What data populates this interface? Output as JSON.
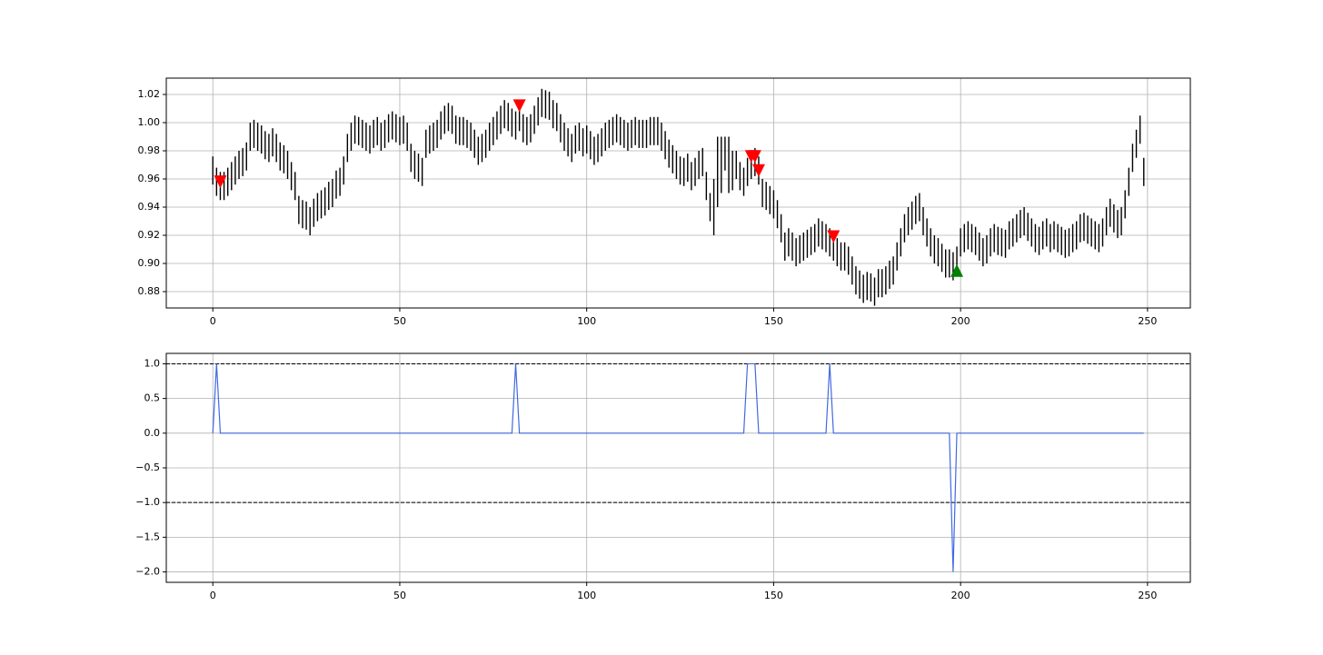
{
  "chart_data": [
    {
      "type": "range",
      "color": "#000000",
      "grid": true,
      "x": [
        0,
        1,
        2,
        3,
        4,
        5,
        6,
        7,
        8,
        9,
        10,
        11,
        12,
        13,
        14,
        15,
        16,
        17,
        18,
        19,
        20,
        21,
        22,
        23,
        24,
        25,
        26,
        27,
        28,
        29,
        30,
        31,
        32,
        33,
        34,
        35,
        36,
        37,
        38,
        39,
        40,
        41,
        42,
        43,
        44,
        45,
        46,
        47,
        48,
        49,
        50,
        51,
        52,
        53,
        54,
        55,
        56,
        57,
        58,
        59,
        60,
        61,
        62,
        63,
        64,
        65,
        66,
        67,
        68,
        69,
        70,
        71,
        72,
        73,
        74,
        75,
        76,
        77,
        78,
        79,
        80,
        81,
        82,
        83,
        84,
        85,
        86,
        87,
        88,
        89,
        90,
        91,
        92,
        93,
        94,
        95,
        96,
        97,
        98,
        99,
        100,
        101,
        102,
        103,
        104,
        105,
        106,
        107,
        108,
        109,
        110,
        111,
        112,
        113,
        114,
        115,
        116,
        117,
        118,
        119,
        120,
        121,
        122,
        123,
        124,
        125,
        126,
        127,
        128,
        129,
        130,
        131,
        132,
        133,
        134,
        135,
        136,
        137,
        138,
        139,
        140,
        141,
        142,
        143,
        144,
        145,
        146,
        147,
        148,
        149,
        150,
        151,
        152,
        153,
        154,
        155,
        156,
        157,
        158,
        159,
        160,
        161,
        162,
        163,
        164,
        165,
        166,
        167,
        168,
        169,
        170,
        171,
        172,
        173,
        174,
        175,
        176,
        177,
        178,
        179,
        180,
        181,
        182,
        183,
        184,
        185,
        186,
        187,
        188,
        189,
        190,
        191,
        192,
        193,
        194,
        195,
        196,
        197,
        198,
        199,
        200,
        201,
        202,
        203,
        204,
        205,
        206,
        207,
        208,
        209,
        210,
        211,
        212,
        213,
        214,
        215,
        216,
        217,
        218,
        219,
        220,
        221,
        222,
        223,
        224,
        225,
        226,
        227,
        228,
        229,
        230,
        231,
        232,
        233,
        234,
        235,
        236,
        237,
        238,
        239,
        240,
        241,
        242,
        243,
        244,
        245,
        246,
        247,
        248,
        249
      ],
      "high": [
        0.976,
        0.968,
        0.965,
        0.965,
        0.968,
        0.972,
        0.976,
        0.98,
        0.982,
        0.986,
        1.0,
        1.002,
        1.0,
        0.998,
        0.994,
        0.992,
        0.996,
        0.992,
        0.986,
        0.984,
        0.98,
        0.972,
        0.965,
        0.948,
        0.945,
        0.944,
        0.94,
        0.946,
        0.95,
        0.952,
        0.954,
        0.958,
        0.96,
        0.966,
        0.968,
        0.976,
        0.992,
        1.0,
        1.005,
        1.004,
        1.002,
        1.0,
        0.998,
        1.002,
        1.004,
        1.0,
        1.002,
        1.006,
        1.008,
        1.006,
        1.004,
        1.005,
        1.0,
        0.985,
        0.98,
        0.978,
        0.975,
        0.995,
        0.998,
        1.0,
        1.002,
        1.008,
        1.012,
        1.014,
        1.012,
        1.005,
        1.004,
        1.004,
        1.002,
        1.0,
        0.995,
        0.99,
        0.992,
        0.995,
        1.0,
        1.004,
        1.008,
        1.012,
        1.016,
        1.014,
        1.01,
        1.008,
        1.014,
        1.006,
        1.004,
        1.006,
        1.012,
        1.018,
        1.024,
        1.023,
        1.022,
        1.016,
        1.014,
        1.006,
        1.0,
        0.996,
        0.992,
        0.998,
        1.0,
        0.996,
        0.998,
        0.994,
        0.99,
        0.992,
        0.996,
        1.0,
        1.002,
        1.004,
        1.006,
        1.004,
        1.002,
        1.0,
        1.002,
        1.004,
        1.002,
        1.002,
        1.002,
        1.004,
        1.004,
        1.004,
        1.0,
        0.994,
        0.988,
        0.984,
        0.98,
        0.976,
        0.975,
        0.978,
        0.972,
        0.975,
        0.98,
        0.982,
        0.965,
        0.95,
        0.96,
        0.99,
        0.99,
        0.99,
        0.99,
        0.98,
        0.98,
        0.972,
        0.968,
        0.975,
        0.98,
        0.982,
        0.976,
        0.96,
        0.958,
        0.955,
        0.952,
        0.945,
        0.935,
        0.922,
        0.925,
        0.922,
        0.918,
        0.92,
        0.922,
        0.924,
        0.926,
        0.928,
        0.932,
        0.93,
        0.928,
        0.925,
        0.922,
        0.918,
        0.915,
        0.915,
        0.912,
        0.905,
        0.898,
        0.895,
        0.892,
        0.894,
        0.893,
        0.89,
        0.896,
        0.896,
        0.898,
        0.902,
        0.905,
        0.915,
        0.925,
        0.935,
        0.94,
        0.944,
        0.948,
        0.95,
        0.94,
        0.932,
        0.925,
        0.92,
        0.918,
        0.914,
        0.91,
        0.91,
        0.908,
        0.912,
        0.925,
        0.928,
        0.93,
        0.928,
        0.926,
        0.922,
        0.918,
        0.92,
        0.925,
        0.928,
        0.926,
        0.925,
        0.924,
        0.93,
        0.932,
        0.935,
        0.938,
        0.94,
        0.936,
        0.932,
        0.928,
        0.926,
        0.93,
        0.932,
        0.928,
        0.93,
        0.928,
        0.926,
        0.924,
        0.925,
        0.928,
        0.93,
        0.935,
        0.936,
        0.934,
        0.932,
        0.93,
        0.928,
        0.932,
        0.94,
        0.946,
        0.942,
        0.938,
        0.94,
        0.952,
        0.968,
        0.985,
        0.995,
        1.005,
        0.975
      ],
      "low": [
        0.956,
        0.948,
        0.945,
        0.945,
        0.948,
        0.952,
        0.956,
        0.96,
        0.962,
        0.966,
        0.98,
        0.982,
        0.98,
        0.978,
        0.974,
        0.972,
        0.976,
        0.972,
        0.966,
        0.964,
        0.96,
        0.952,
        0.945,
        0.928,
        0.925,
        0.924,
        0.92,
        0.926,
        0.93,
        0.932,
        0.934,
        0.938,
        0.94,
        0.946,
        0.948,
        0.956,
        0.972,
        0.98,
        0.985,
        0.984,
        0.982,
        0.98,
        0.978,
        0.982,
        0.984,
        0.98,
        0.982,
        0.986,
        0.988,
        0.986,
        0.984,
        0.985,
        0.98,
        0.965,
        0.96,
        0.958,
        0.955,
        0.975,
        0.978,
        0.98,
        0.982,
        0.988,
        0.992,
        0.994,
        0.992,
        0.985,
        0.984,
        0.984,
        0.982,
        0.98,
        0.975,
        0.97,
        0.972,
        0.975,
        0.98,
        0.984,
        0.988,
        0.992,
        0.996,
        0.994,
        0.99,
        0.988,
        0.994,
        0.986,
        0.984,
        0.986,
        0.992,
        0.998,
        1.004,
        1.003,
        1.002,
        0.996,
        0.994,
        0.986,
        0.98,
        0.976,
        0.972,
        0.978,
        0.98,
        0.976,
        0.978,
        0.974,
        0.97,
        0.972,
        0.976,
        0.98,
        0.982,
        0.984,
        0.986,
        0.984,
        0.982,
        0.98,
        0.982,
        0.984,
        0.982,
        0.982,
        0.982,
        0.984,
        0.984,
        0.984,
        0.98,
        0.974,
        0.968,
        0.964,
        0.96,
        0.956,
        0.955,
        0.958,
        0.952,
        0.955,
        0.96,
        0.962,
        0.945,
        0.93,
        0.92,
        0.94,
        0.95,
        0.966,
        0.95,
        0.952,
        0.96,
        0.952,
        0.948,
        0.955,
        0.96,
        0.962,
        0.956,
        0.94,
        0.938,
        0.935,
        0.932,
        0.925,
        0.915,
        0.902,
        0.905,
        0.902,
        0.898,
        0.9,
        0.902,
        0.904,
        0.906,
        0.908,
        0.912,
        0.91,
        0.908,
        0.905,
        0.902,
        0.898,
        0.895,
        0.895,
        0.892,
        0.885,
        0.878,
        0.875,
        0.872,
        0.874,
        0.873,
        0.87,
        0.876,
        0.876,
        0.878,
        0.882,
        0.885,
        0.895,
        0.905,
        0.915,
        0.92,
        0.924,
        0.928,
        0.93,
        0.92,
        0.912,
        0.905,
        0.9,
        0.898,
        0.894,
        0.89,
        0.89,
        0.888,
        0.892,
        0.905,
        0.908,
        0.91,
        0.908,
        0.906,
        0.902,
        0.898,
        0.9,
        0.905,
        0.908,
        0.906,
        0.905,
        0.904,
        0.91,
        0.912,
        0.915,
        0.918,
        0.92,
        0.916,
        0.912,
        0.908,
        0.906,
        0.91,
        0.912,
        0.908,
        0.91,
        0.908,
        0.906,
        0.904,
        0.905,
        0.908,
        0.91,
        0.915,
        0.916,
        0.914,
        0.912,
        0.91,
        0.908,
        0.912,
        0.92,
        0.926,
        0.922,
        0.918,
        0.92,
        0.932,
        0.948,
        0.965,
        0.975,
        0.985,
        0.955
      ],
      "markers": [
        {
          "marker": "down",
          "color": "#ff0000",
          "x": [
            2,
            82,
            144,
            145,
            146,
            166
          ],
          "y": [
            0.958,
            1.012,
            0.976,
            0.976,
            0.966,
            0.919
          ]
        },
        {
          "marker": "up",
          "color": "#008000",
          "x": [
            199
          ],
          "y": [
            0.895
          ]
        }
      ],
      "xlim": [
        -12.45,
        261.45
      ],
      "ylim": [
        0.8684,
        1.0316
      ],
      "xticks": [
        0,
        50,
        100,
        150,
        200,
        250
      ],
      "yticks": [
        0.88,
        {
          "value": 0.9,
          "label": "0.90"
        },
        0.92,
        0.94,
        0.96,
        0.98,
        {
          "value": 1,
          "label": "1.00"
        },
        1.02
      ]
    },
    {
      "type": "line",
      "color": "#4169e1",
      "grid": true,
      "x": [
        0,
        1,
        2,
        3,
        4,
        5,
        6,
        7,
        8,
        9,
        10,
        11,
        12,
        13,
        14,
        15,
        16,
        17,
        18,
        19,
        20,
        21,
        22,
        23,
        24,
        25,
        26,
        27,
        28,
        29,
        30,
        31,
        32,
        33,
        34,
        35,
        36,
        37,
        38,
        39,
        40,
        41,
        42,
        43,
        44,
        45,
        46,
        47,
        48,
        49,
        50,
        51,
        52,
        53,
        54,
        55,
        56,
        57,
        58,
        59,
        60,
        61,
        62,
        63,
        64,
        65,
        66,
        67,
        68,
        69,
        70,
        71,
        72,
        73,
        74,
        75,
        76,
        77,
        78,
        79,
        80,
        81,
        82,
        83,
        84,
        85,
        86,
        87,
        88,
        89,
        90,
        91,
        92,
        93,
        94,
        95,
        96,
        97,
        98,
        99,
        100,
        101,
        102,
        103,
        104,
        105,
        106,
        107,
        108,
        109,
        110,
        111,
        112,
        113,
        114,
        115,
        116,
        117,
        118,
        119,
        120,
        121,
        122,
        123,
        124,
        125,
        126,
        127,
        128,
        129,
        130,
        131,
        132,
        133,
        134,
        135,
        136,
        137,
        138,
        139,
        140,
        141,
        142,
        143,
        144,
        145,
        146,
        147,
        148,
        149,
        150,
        151,
        152,
        153,
        154,
        155,
        156,
        157,
        158,
        159,
        160,
        161,
        162,
        163,
        164,
        165,
        166,
        167,
        168,
        169,
        170,
        171,
        172,
        173,
        174,
        175,
        176,
        177,
        178,
        179,
        180,
        181,
        182,
        183,
        184,
        185,
        186,
        187,
        188,
        189,
        190,
        191,
        192,
        193,
        194,
        195,
        196,
        197,
        198,
        199,
        200,
        201,
        202,
        203,
        204,
        205,
        206,
        207,
        208,
        209,
        210,
        211,
        212,
        213,
        214,
        215,
        216,
        217,
        218,
        219,
        220,
        221,
        222,
        223,
        224,
        225,
        226,
        227,
        228,
        229,
        230,
        231,
        232,
        233,
        234,
        235,
        236,
        237,
        238,
        239,
        240,
        241,
        242,
        243,
        244,
        245,
        246,
        247,
        248,
        249
      ],
      "values": [
        0,
        1,
        0,
        0,
        0,
        0,
        0,
        0,
        0,
        0,
        0,
        0,
        0,
        0,
        0,
        0,
        0,
        0,
        0,
        0,
        0,
        0,
        0,
        0,
        0,
        0,
        0,
        0,
        0,
        0,
        0,
        0,
        0,
        0,
        0,
        0,
        0,
        0,
        0,
        0,
        0,
        0,
        0,
        0,
        0,
        0,
        0,
        0,
        0,
        0,
        0,
        0,
        0,
        0,
        0,
        0,
        0,
        0,
        0,
        0,
        0,
        0,
        0,
        0,
        0,
        0,
        0,
        0,
        0,
        0,
        0,
        0,
        0,
        0,
        0,
        0,
        0,
        0,
        0,
        0,
        0,
        1,
        0,
        0,
        0,
        0,
        0,
        0,
        0,
        0,
        0,
        0,
        0,
        0,
        0,
        0,
        0,
        0,
        0,
        0,
        0,
        0,
        0,
        0,
        0,
        0,
        0,
        0,
        0,
        0,
        0,
        0,
        0,
        0,
        0,
        0,
        0,
        0,
        0,
        0,
        0,
        0,
        0,
        0,
        0,
        0,
        0,
        0,
        0,
        0,
        0,
        0,
        0,
        0,
        0,
        0,
        0,
        0,
        0,
        0,
        0,
        0,
        0,
        1,
        1,
        1,
        0,
        0,
        0,
        0,
        0,
        0,
        0,
        0,
        0,
        0,
        0,
        0,
        0,
        0,
        0,
        0,
        0,
        0,
        0,
        1,
        0,
        0,
        0,
        0,
        0,
        0,
        0,
        0,
        0,
        0,
        0,
        0,
        0,
        0,
        0,
        0,
        0,
        0,
        0,
        0,
        0,
        0,
        0,
        0,
        0,
        0,
        0,
        0,
        0,
        0,
        0,
        0,
        -2,
        0,
        0,
        0,
        0,
        0,
        0,
        0,
        0,
        0,
        0,
        0,
        0,
        0,
        0,
        0,
        0,
        0,
        0,
        0,
        0,
        0,
        0,
        0,
        0,
        0,
        0,
        0,
        0,
        0,
        0,
        0,
        0,
        0,
        0,
        0,
        0,
        0,
        0,
        0,
        0,
        0,
        0,
        0,
        0,
        0,
        0,
        0,
        0,
        0,
        0,
        0
      ],
      "hlines": [
        1,
        -1
      ],
      "hline_color": "#000000",
      "xlim": [
        -12.45,
        261.45
      ],
      "ylim": [
        -2.15,
        1.15
      ],
      "xticks": [
        0,
        50,
        100,
        150,
        200,
        250
      ],
      "yticks": [
        {
          "value": -2,
          "label": "−2.0"
        },
        {
          "value": -1.5,
          "label": "−1.5"
        },
        {
          "value": -1,
          "label": "−1.0"
        },
        {
          "value": -0.5,
          "label": "−0.5"
        },
        {
          "value": 0,
          "label": "0.0"
        },
        0.5,
        {
          "value": 1,
          "label": "1.0"
        }
      ]
    }
  ]
}
